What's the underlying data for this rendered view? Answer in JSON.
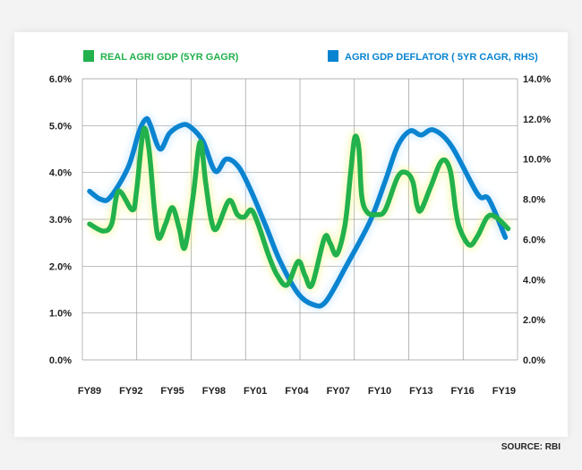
{
  "source": "SOURCE: RBI",
  "chart_data": {
    "type": "line",
    "title": "",
    "xlabel": "",
    "ylabel": "",
    "x_tick_labels": [
      "FY89",
      "FY92",
      "FY95",
      "FY98",
      "FY01",
      "FY04",
      "FY07",
      "FY10",
      "FY13",
      "FY16",
      "FY19"
    ],
    "x_tick_years": [
      1989,
      1992,
      1995,
      1998,
      2001,
      2004,
      2007,
      2010,
      2013,
      2016,
      2019
    ],
    "y_left": {
      "lim": [
        0,
        6
      ],
      "ticks": [
        "0.0%",
        "1.0%",
        "2.0%",
        "3.0%",
        "4.0%",
        "5.0%",
        "6.0%"
      ]
    },
    "y_right": {
      "lim": [
        0,
        14
      ],
      "ticks": [
        "0.0%",
        "2.0%",
        "4.0%",
        "6.0%",
        "8.0%",
        "10.0%",
        "12.0%",
        "14.0%"
      ]
    },
    "grid": true,
    "legend_position": "top",
    "series": [
      {
        "name": "REAL AGRI GDP (5YR GAGR)",
        "axis": "left",
        "color": "#22b14c",
        "x": [
          1989.0,
          1990.0,
          1990.6,
          1991.1,
          1992.1,
          1992.4,
          1992.9,
          1993.3,
          1993.7,
          1994.0,
          1994.5,
          1995.0,
          1995.5,
          1995.9,
          1996.5,
          1997.0,
          1997.4,
          1997.8,
          1998.2,
          1999.1,
          1999.7,
          2000.2,
          2000.7,
          2001.2,
          2002.0,
          2002.6,
          2003.3,
          2004.1,
          2004.6,
          2005.1,
          2006.0,
          2006.4,
          2006.9,
          2007.5,
          2007.9,
          2008.2,
          2008.5,
          2008.7,
          2009.1,
          2009.8,
          2010.4,
          2011.3,
          2011.9,
          2012.4,
          2012.7,
          2013.0,
          2013.7,
          2014.5,
          2015.1,
          2015.5,
          2015.8,
          2016.5,
          2017.1,
          2017.8,
          2018.4,
          2019.3
        ],
        "y": [
          2.9,
          2.75,
          2.9,
          3.6,
          3.2,
          3.6,
          4.9,
          4.5,
          3.2,
          2.6,
          2.9,
          3.25,
          2.8,
          2.4,
          3.5,
          4.65,
          3.8,
          3.0,
          2.8,
          3.4,
          3.1,
          3.05,
          3.2,
          2.9,
          2.2,
          1.8,
          1.6,
          2.1,
          1.8,
          1.6,
          2.6,
          2.5,
          2.25,
          2.9,
          4.0,
          4.75,
          4.5,
          3.5,
          3.15,
          3.1,
          3.2,
          3.9,
          4.0,
          3.8,
          3.3,
          3.2,
          3.7,
          4.25,
          4.05,
          3.2,
          2.8,
          2.45,
          2.65,
          3.05,
          3.05,
          2.8
        ]
      },
      {
        "name": "AGRI GDP DEFLATOR ( 5YR CAGR, RHS)",
        "axis": "right",
        "color": "#0a84d0",
        "x": [
          1989.0,
          1989.8,
          1990.5,
          1991.8,
          1992.6,
          1993.1,
          1993.4,
          1994.1,
          1994.8,
          1995.7,
          1996.3,
          1997.2,
          1998.1,
          1998.9,
          1999.8,
          2000.7,
          2001.8,
          2002.8,
          2004.1,
          2005.2,
          2006.1,
          2007.6,
          2009.3,
          2010.4,
          2011.3,
          2012.2,
          2013.0,
          2013.9,
          2015.2,
          2017.1,
          2017.9,
          2019.1
        ],
        "y": [
          8.4,
          8.0,
          8.1,
          9.6,
          11.4,
          12.0,
          11.7,
          10.5,
          11.3,
          11.7,
          11.6,
          10.9,
          9.4,
          10.0,
          9.6,
          8.4,
          6.6,
          4.9,
          3.3,
          2.75,
          2.9,
          4.7,
          6.9,
          8.9,
          10.65,
          11.4,
          11.2,
          11.45,
          10.65,
          8.25,
          8.0,
          6.1
        ]
      }
    ]
  }
}
